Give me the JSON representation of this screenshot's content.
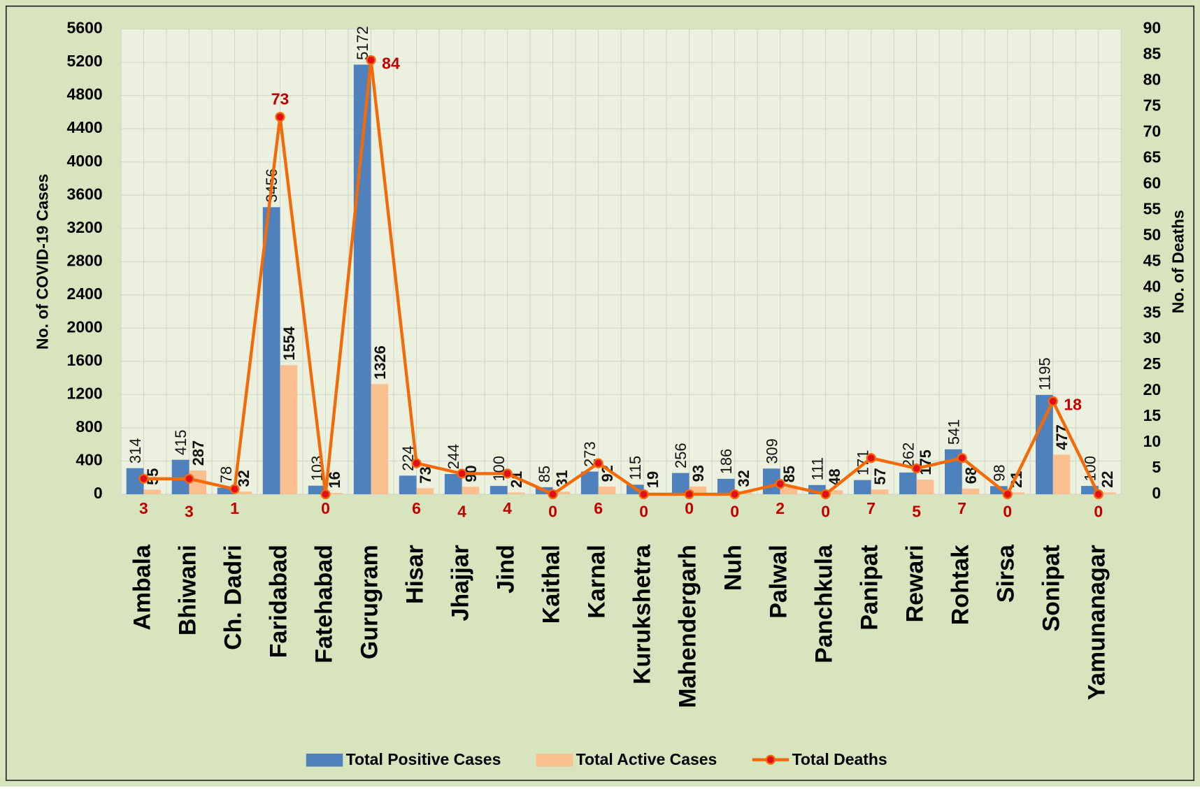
{
  "chart_data": {
    "type": "bar",
    "categories": [
      "Ambala",
      "Bhiwani",
      "Ch. Dadri",
      "Faridabad",
      "Fatehabad",
      "Gurugram",
      "Hisar",
      "Jhajjar",
      "Jind",
      "Kaithal",
      "Karnal",
      "Kurukshetra",
      "Mahendergarh",
      "Nuh",
      "Palwal",
      "Panchkula",
      "Panipat",
      "Rewari",
      "Rohtak",
      "Sirsa",
      "Sonipat",
      "Yamunanagar"
    ],
    "series": [
      {
        "name": "Total Positive Cases",
        "type": "bar",
        "color": "#4f81bd",
        "values": [
          314,
          415,
          78,
          3456,
          103,
          5172,
          224,
          244,
          100,
          85,
          273,
          115,
          256,
          186,
          309,
          111,
          171,
          262,
          541,
          98,
          1195,
          100
        ]
      },
      {
        "name": "Total Active Cases",
        "type": "bar",
        "color": "#fac090",
        "values": [
          55,
          287,
          32,
          1554,
          16,
          1326,
          73,
          90,
          21,
          31,
          92,
          19,
          93,
          32,
          85,
          48,
          57,
          175,
          68,
          21,
          477,
          22
        ]
      },
      {
        "name": "Total Deaths",
        "type": "line",
        "axis": "y2",
        "color": "#f46a06",
        "marker_color": "#e0101a",
        "values": [
          3,
          3,
          1,
          73,
          0,
          84,
          6,
          4,
          4,
          0,
          6,
          0,
          0,
          0,
          2,
          0,
          7,
          5,
          7,
          0,
          18,
          0
        ]
      }
    ],
    "ylabel": "No. of COVID-19 Cases",
    "y2label": "No. of Deaths",
    "ylim": [
      0,
      5600
    ],
    "yticks": [
      0,
      400,
      800,
      1200,
      1600,
      2000,
      2400,
      2800,
      3200,
      3600,
      4000,
      4400,
      4800,
      5200,
      5600
    ],
    "y2lim": [
      0,
      90
    ],
    "y2ticks": [
      0,
      5,
      10,
      15,
      20,
      25,
      30,
      35,
      40,
      45,
      50,
      55,
      60,
      65,
      70,
      75,
      80,
      85,
      90
    ],
    "grid": true,
    "legend": "bottom"
  }
}
